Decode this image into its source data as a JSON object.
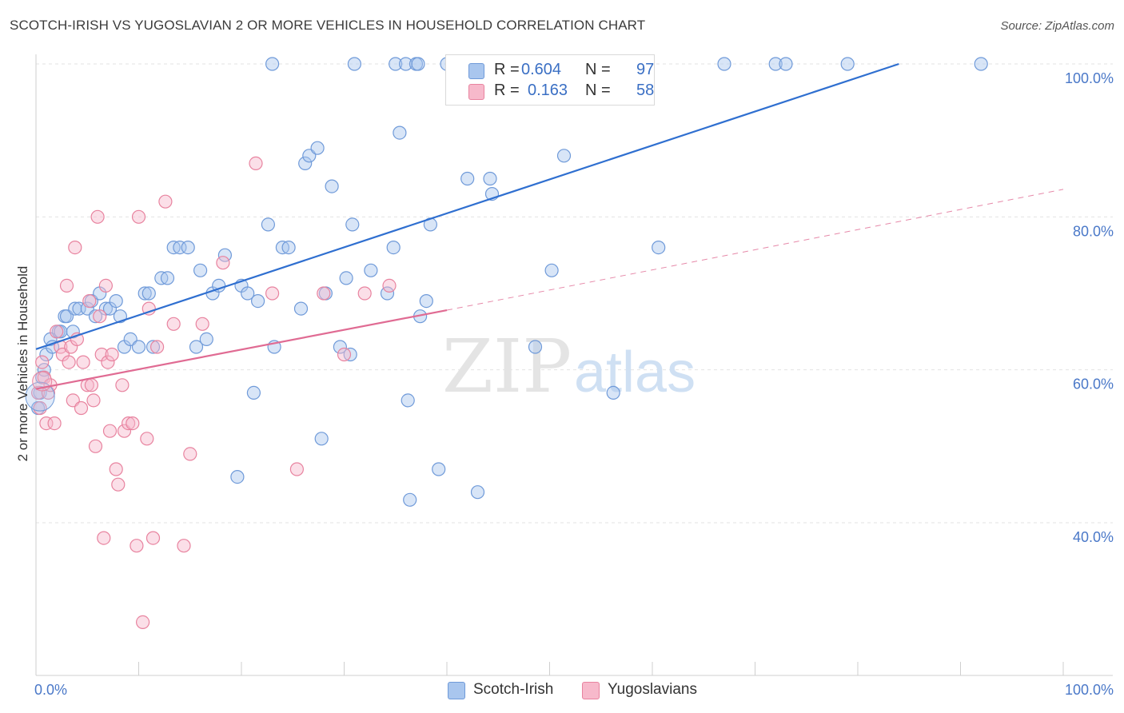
{
  "title": "SCOTCH-IRISH VS YUGOSLAVIAN 2 OR MORE VEHICLES IN HOUSEHOLD CORRELATION CHART",
  "source": "Source: ZipAtlas.com",
  "watermark": {
    "zip": "ZIP",
    "atlas": "atlas"
  },
  "colors": {
    "blue_fill": "#a9c6ee",
    "blue_stroke": "#6f9ad9",
    "blue_line": "#2f6fd0",
    "pink_fill": "#f7b9cb",
    "pink_stroke": "#e8839f",
    "pink_line": "#e06b93",
    "axis_text": "#4a78c8",
    "grid": "#e3e3e3"
  },
  "legend_top": {
    "rows": [
      {
        "r_label": "R =",
        "r_value": "0.604",
        "n_label": "N =",
        "n_value": "97"
      },
      {
        "r_label": "R =",
        "r_value": "0.163",
        "n_label": "N =",
        "n_value": "58"
      }
    ]
  },
  "legend_bottom": {
    "items": [
      "Scotch-Irish",
      "Yugoslavians"
    ]
  },
  "chart_data": {
    "type": "scatter",
    "xlabel": "",
    "ylabel": "2 or more Vehicles in Household",
    "xlim": [
      0,
      100
    ],
    "ylim": [
      20,
      102
    ],
    "x_tick_labels": [
      "0.0%",
      "100.0%"
    ],
    "y_ticks": [
      40,
      60,
      80,
      100
    ],
    "y_tick_labels": [
      "40.0%",
      "60.0%",
      "80.0%",
      "100.0%"
    ],
    "grid": true,
    "series": [
      {
        "name": "Scotch-Irish",
        "color": "#a9c6ee",
        "points": [
          [
            0.2,
            55
          ],
          [
            0.4,
            57
          ],
          [
            0.6,
            59
          ],
          [
            0.8,
            60
          ],
          [
            1.0,
            62
          ],
          [
            1.4,
            64
          ],
          [
            1.6,
            63
          ],
          [
            2.2,
            65
          ],
          [
            2.4,
            65
          ],
          [
            2.8,
            67
          ],
          [
            3.0,
            67
          ],
          [
            3.6,
            65
          ],
          [
            3.8,
            68
          ],
          [
            4.2,
            68
          ],
          [
            5.0,
            68
          ],
          [
            5.4,
            69
          ],
          [
            5.8,
            67
          ],
          [
            6.2,
            70
          ],
          [
            6.8,
            68
          ],
          [
            7.2,
            68
          ],
          [
            7.8,
            69
          ],
          [
            8.2,
            67
          ],
          [
            8.6,
            63
          ],
          [
            9.2,
            64
          ],
          [
            10.0,
            63
          ],
          [
            10.6,
            70
          ],
          [
            11.0,
            70
          ],
          [
            11.4,
            63
          ],
          [
            12.2,
            72
          ],
          [
            12.8,
            72
          ],
          [
            13.4,
            76
          ],
          [
            14.0,
            76
          ],
          [
            14.8,
            76
          ],
          [
            15.6,
            63
          ],
          [
            16.0,
            73
          ],
          [
            16.6,
            64
          ],
          [
            17.2,
            70
          ],
          [
            17.8,
            71
          ],
          [
            18.4,
            75
          ],
          [
            19.6,
            46
          ],
          [
            20.0,
            71
          ],
          [
            20.6,
            70
          ],
          [
            21.2,
            57
          ],
          [
            21.6,
            69
          ],
          [
            22.6,
            79
          ],
          [
            23.2,
            63
          ],
          [
            24.0,
            76
          ],
          [
            24.6,
            76
          ],
          [
            25.8,
            68
          ],
          [
            26.2,
            87
          ],
          [
            26.6,
            88
          ],
          [
            27.4,
            89
          ],
          [
            27.8,
            51
          ],
          [
            28.2,
            70
          ],
          [
            28.8,
            84
          ],
          [
            29.6,
            63
          ],
          [
            30.2,
            72
          ],
          [
            30.6,
            62
          ],
          [
            30.8,
            79
          ],
          [
            32.6,
            73
          ],
          [
            34.2,
            70
          ],
          [
            34.8,
            76
          ],
          [
            35.4,
            91
          ],
          [
            36.2,
            56
          ],
          [
            36.4,
            43
          ],
          [
            37.4,
            67
          ],
          [
            38.0,
            69
          ],
          [
            38.4,
            79
          ],
          [
            39.2,
            47
          ],
          [
            42.0,
            85
          ],
          [
            43.0,
            44
          ],
          [
            44.2,
            85
          ],
          [
            44.4,
            83
          ],
          [
            48.6,
            63
          ],
          [
            50.2,
            73
          ],
          [
            51.4,
            88
          ],
          [
            56.2,
            57
          ],
          [
            60.6,
            76
          ],
          [
            23,
            100
          ],
          [
            31,
            100
          ],
          [
            35,
            100
          ],
          [
            36,
            100
          ],
          [
            37,
            100
          ],
          [
            37.2,
            100
          ],
          [
            40,
            100
          ],
          [
            40.5,
            100
          ],
          [
            41.5,
            100
          ],
          [
            42,
            100
          ],
          [
            44,
            100
          ],
          [
            47,
            100
          ],
          [
            52,
            100
          ],
          [
            54,
            100
          ],
          [
            67,
            100
          ],
          [
            72,
            100
          ],
          [
            73,
            100
          ],
          [
            79,
            100
          ],
          [
            92,
            100
          ]
        ]
      },
      {
        "name": "Yugoslavians",
        "color": "#f7b9cb",
        "points": [
          [
            0.2,
            57
          ],
          [
            0.4,
            55
          ],
          [
            0.6,
            61
          ],
          [
            0.8,
            59
          ],
          [
            1.0,
            53
          ],
          [
            1.2,
            57
          ],
          [
            1.4,
            58
          ],
          [
            1.8,
            53
          ],
          [
            2.0,
            65
          ],
          [
            2.4,
            63
          ],
          [
            2.6,
            62
          ],
          [
            3.0,
            71
          ],
          [
            3.2,
            61
          ],
          [
            3.4,
            63
          ],
          [
            3.6,
            56
          ],
          [
            3.8,
            76
          ],
          [
            4.0,
            64
          ],
          [
            4.4,
            55
          ],
          [
            4.6,
            61
          ],
          [
            5.0,
            58
          ],
          [
            5.2,
            69
          ],
          [
            5.4,
            58
          ],
          [
            5.6,
            56
          ],
          [
            5.8,
            50
          ],
          [
            6.0,
            80
          ],
          [
            6.2,
            67
          ],
          [
            6.4,
            62
          ],
          [
            6.6,
            38
          ],
          [
            6.8,
            71
          ],
          [
            7.0,
            61
          ],
          [
            7.2,
            52
          ],
          [
            7.4,
            62
          ],
          [
            7.8,
            47
          ],
          [
            8.0,
            45
          ],
          [
            8.4,
            58
          ],
          [
            8.6,
            52
          ],
          [
            9.0,
            53
          ],
          [
            9.4,
            53
          ],
          [
            9.8,
            37
          ],
          [
            10.0,
            80
          ],
          [
            10.4,
            27
          ],
          [
            10.8,
            51
          ],
          [
            11.0,
            68
          ],
          [
            11.4,
            38
          ],
          [
            11.8,
            63
          ],
          [
            12.6,
            82
          ],
          [
            13.4,
            66
          ],
          [
            14.4,
            37
          ],
          [
            15.0,
            49
          ],
          [
            16.2,
            66
          ],
          [
            18.2,
            74
          ],
          [
            21.4,
            87
          ],
          [
            23.0,
            70
          ],
          [
            25.4,
            47
          ],
          [
            28.0,
            70
          ],
          [
            30.0,
            62
          ],
          [
            32.0,
            70
          ],
          [
            34.4,
            71
          ]
        ]
      }
    ],
    "trend_lines": [
      {
        "series": "Scotch-Irish",
        "x": [
          0,
          84
        ],
        "y": [
          62.7,
          100
        ]
      },
      {
        "series": "Yugoslavians",
        "x": [
          0,
          40
        ],
        "y": [
          57.5,
          67.8
        ]
      },
      {
        "series": "Yugoslavians",
        "style": "dashed",
        "x": [
          40,
          100
        ],
        "y": [
          67.8,
          83.6
        ]
      }
    ]
  }
}
